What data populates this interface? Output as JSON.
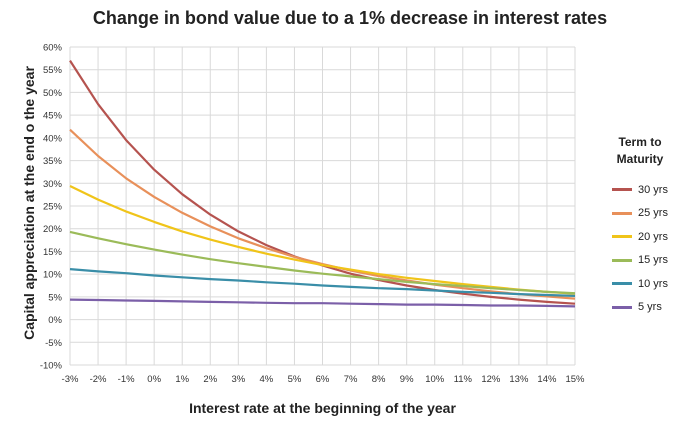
{
  "chart_data": {
    "type": "line",
    "title": "Change in bond value due to a 1% decrease in interest rates",
    "xlabel": "Interest rate at the beginning of the year",
    "ylabel": "Capital appreciation at the end o the year",
    "x_ticks": [
      "-3%",
      "-2%",
      "-1%",
      "0%",
      "1%",
      "2%",
      "3%",
      "4%",
      "5%",
      "6%",
      "7%",
      "8%",
      "9%",
      "10%",
      "11%",
      "12%",
      "13%",
      "14%",
      "15%"
    ],
    "y_ticks": [
      "-10%",
      "-5%",
      "0%",
      "5%",
      "10%",
      "15%",
      "20%",
      "25%",
      "30%",
      "35%",
      "40%",
      "45%",
      "50%",
      "55%",
      "60%"
    ],
    "xlim": [
      -3,
      15
    ],
    "ylim": [
      -10,
      60
    ],
    "grid": true,
    "legend_title": "Term to Maturity",
    "legend_position": "right",
    "x": [
      -3,
      -2,
      -1,
      0,
      1,
      2,
      3,
      4,
      5,
      6,
      7,
      8,
      9,
      10,
      11,
      12,
      13,
      14,
      15
    ],
    "series": [
      {
        "name": "30 yrs",
        "color": "#b5534f",
        "values": [
          57.0,
          47.4,
          39.5,
          33.0,
          27.6,
          23.1,
          19.4,
          16.4,
          13.9,
          11.9,
          10.1,
          8.7,
          7.5,
          6.5,
          5.7,
          5.0,
          4.4,
          3.9,
          3.5
        ]
      },
      {
        "name": "25 yrs",
        "color": "#e8905a",
        "values": [
          41.8,
          36.0,
          31.1,
          27.0,
          23.5,
          20.5,
          17.9,
          15.7,
          13.8,
          12.2,
          10.8,
          9.6,
          8.6,
          7.7,
          6.9,
          6.2,
          5.6,
          5.1,
          4.6
        ]
      },
      {
        "name": "20 yrs",
        "color": "#f0c419",
        "values": [
          29.4,
          26.4,
          23.8,
          21.5,
          19.4,
          17.6,
          16.0,
          14.5,
          13.2,
          12.0,
          11.0,
          10.0,
          9.2,
          8.5,
          7.8,
          7.2,
          6.6,
          6.1,
          5.7
        ]
      },
      {
        "name": "15 yrs",
        "color": "#9bbb59",
        "values": [
          19.3,
          17.9,
          16.6,
          15.4,
          14.3,
          13.3,
          12.4,
          11.6,
          10.8,
          10.1,
          9.5,
          8.9,
          8.3,
          7.8,
          7.4,
          6.9,
          6.5,
          6.1,
          5.8
        ]
      },
      {
        "name": "10 yrs",
        "color": "#3a8ea8",
        "values": [
          11.1,
          10.6,
          10.2,
          9.7,
          9.3,
          8.9,
          8.6,
          8.2,
          7.9,
          7.5,
          7.2,
          6.9,
          6.7,
          6.4,
          6.1,
          5.9,
          5.6,
          5.4,
          5.2
        ]
      },
      {
        "name": "5 yrs",
        "color": "#7b5fa8",
        "values": [
          4.4,
          4.3,
          4.2,
          4.1,
          4.0,
          3.9,
          3.8,
          3.7,
          3.6,
          3.6,
          3.5,
          3.4,
          3.3,
          3.3,
          3.2,
          3.1,
          3.1,
          3.0,
          2.9
        ]
      }
    ]
  }
}
